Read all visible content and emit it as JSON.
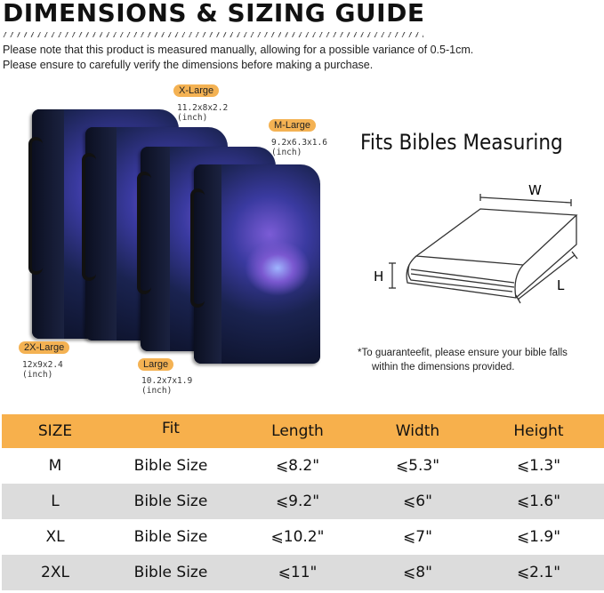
{
  "title": "DIMENSIONS & SIZING GUIDE",
  "notes": [
    "Please note that this product is measured manually, allowing for a possible variance of 0.5-1cm.",
    "Please ensure to carefully verify the dimensions before making a purchase."
  ],
  "sizes": [
    {
      "label": "X-Large",
      "dims": "11.2x8x2.2",
      "unit": "(inch)"
    },
    {
      "label": "M-Large",
      "dims": "9.2x6.3x1.6",
      "unit": "(inch)"
    },
    {
      "label": "2X-Large",
      "dims": "12x9x2.4",
      "unit": "(inch)"
    },
    {
      "label": "Large",
      "dims": "10.2x7x1.9",
      "unit": "(inch)"
    }
  ],
  "fits": {
    "heading": "Fits Bibles Measuring",
    "w": "W",
    "h": "H",
    "l": "L",
    "note1": "*To guaranteefit, please ensure your bible falls",
    "note2": "within the dimensions provided."
  },
  "accent": "#f7b04c",
  "table": {
    "headers": [
      "SIZE",
      "Fit",
      "Length",
      "Width",
      "Height"
    ],
    "rows": [
      [
        "M",
        "Bible Size",
        "⩽8.2\"",
        "⩽5.3\"",
        "⩽1.3\""
      ],
      [
        "L",
        "Bible Size",
        "⩽9.2\"",
        "⩽6\"",
        "⩽1.6\""
      ],
      [
        "XL",
        "Bible Size",
        "⩽10.2\"",
        "⩽7\"",
        "⩽1.9\""
      ],
      [
        "2XL",
        "Bible Size",
        "⩽11\"",
        "⩽8\"",
        "⩽2.1\""
      ]
    ]
  }
}
